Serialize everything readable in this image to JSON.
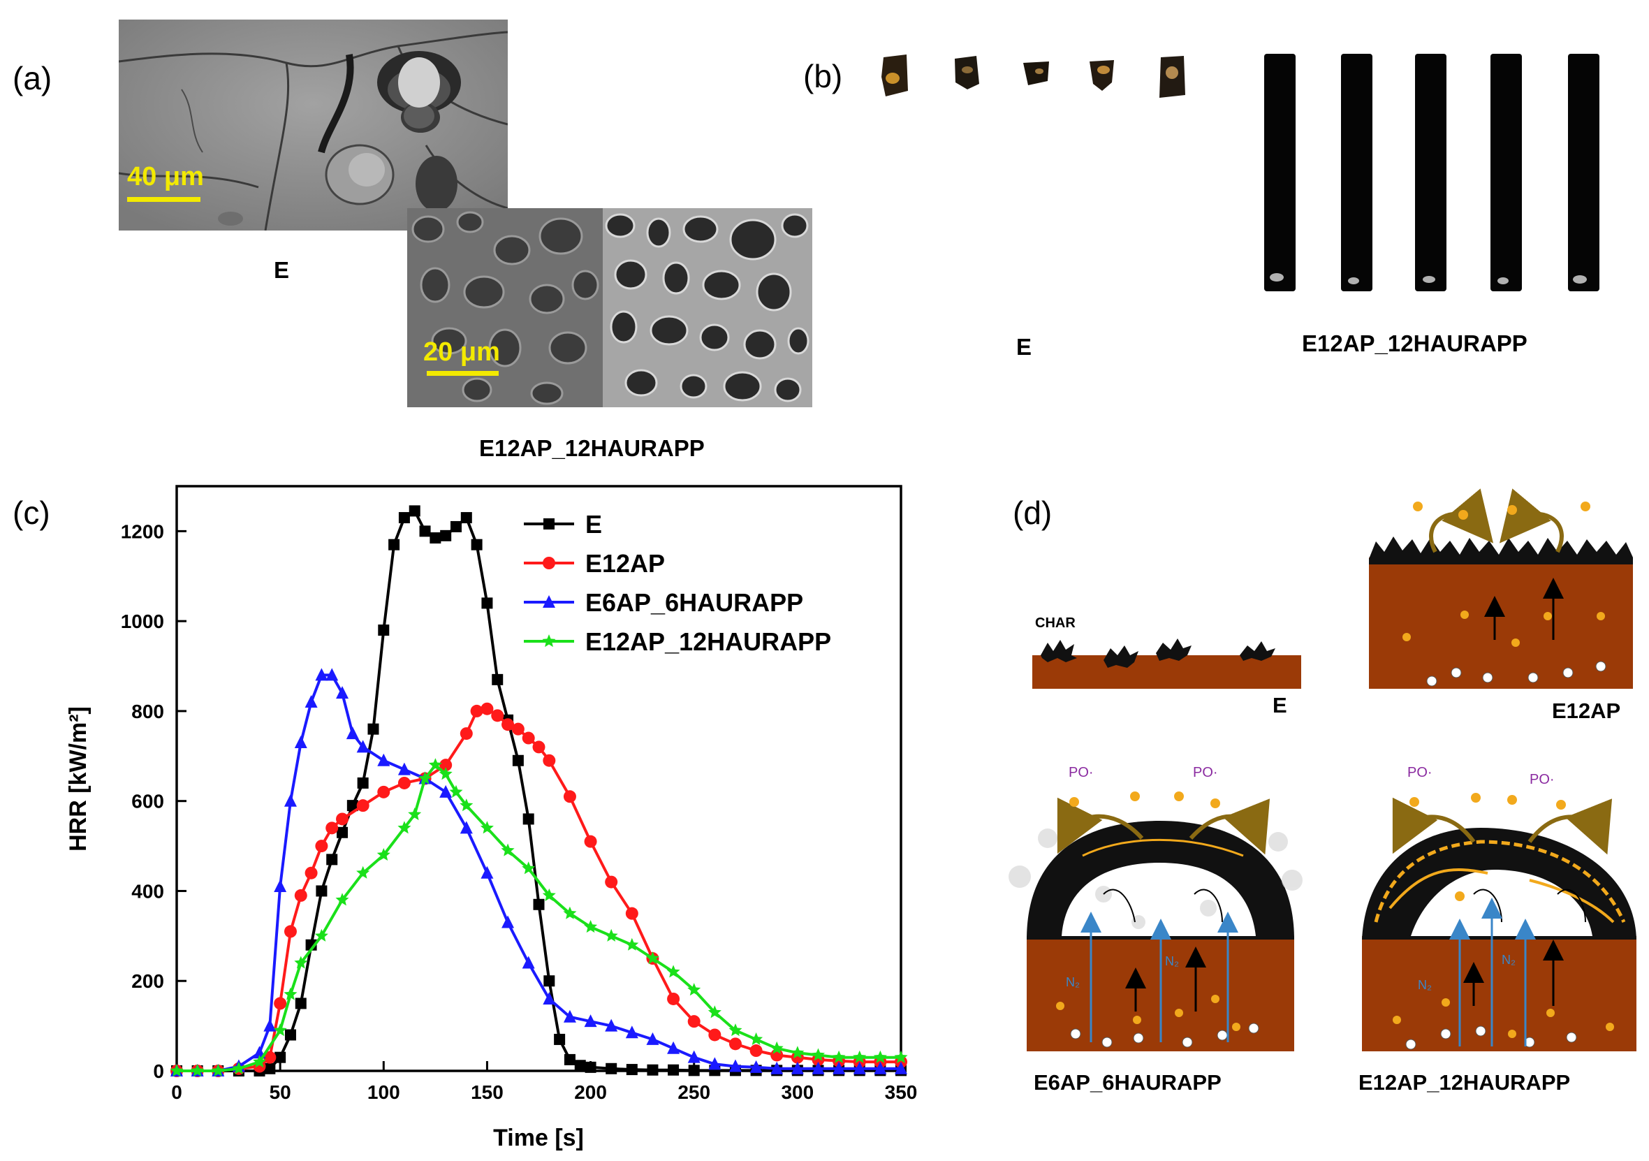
{
  "panels": {
    "a": {
      "label": "(a)",
      "scale_top": "40 μm",
      "scale_bottom": "20 μm",
      "caption_top": "E",
      "caption_bottom": "E12AP_12HAURAPP"
    },
    "b": {
      "label": "(b)",
      "caption_left": "E",
      "caption_right": "E12AP_12HAURAPP"
    },
    "c": {
      "label": "(c)"
    },
    "d": {
      "label": "(d)",
      "char_label": "CHAR",
      "po_label": "PO·",
      "n2_label": "N₂",
      "captions": [
        "E",
        "E12AP",
        "E6AP_6HAURAPP",
        "E12AP_12HAURAPP"
      ]
    }
  },
  "chart_data": {
    "type": "line",
    "xlabel": "Time [s]",
    "ylabel": "HRR [kW/m²]",
    "xlim": [
      0,
      350
    ],
    "ylim": [
      0,
      1300
    ],
    "xticks": [
      0,
      50,
      100,
      150,
      200,
      250,
      300,
      350
    ],
    "yticks": [
      0,
      200,
      400,
      600,
      800,
      1000,
      1200
    ],
    "legend_position": "top-right",
    "grid": false,
    "series": [
      {
        "name": "E",
        "color": "#000000",
        "marker": "square",
        "x": [
          0,
          10,
          20,
          30,
          40,
          45,
          50,
          55,
          60,
          65,
          70,
          75,
          80,
          85,
          90,
          95,
          100,
          105,
          110,
          115,
          120,
          125,
          130,
          135,
          140,
          145,
          150,
          155,
          160,
          165,
          170,
          175,
          180,
          185,
          190,
          195,
          200,
          210,
          220,
          230,
          240,
          250,
          260,
          270,
          280,
          290,
          300,
          310,
          320,
          330,
          340,
          350
        ],
        "y": [
          0,
          0,
          0,
          0,
          0,
          5,
          30,
          80,
          150,
          280,
          400,
          470,
          530,
          590,
          640,
          760,
          980,
          1170,
          1230,
          1245,
          1200,
          1185,
          1190,
          1210,
          1230,
          1170,
          1040,
          870,
          780,
          690,
          560,
          370,
          200,
          70,
          25,
          12,
          8,
          5,
          3,
          2,
          2,
          1,
          1,
          1,
          1,
          1,
          1,
          1,
          1,
          1,
          1,
          1
        ]
      },
      {
        "name": "E12AP",
        "color": "#ff1a1a",
        "marker": "circle",
        "x": [
          0,
          10,
          20,
          30,
          40,
          45,
          50,
          55,
          60,
          65,
          70,
          75,
          80,
          90,
          100,
          110,
          120,
          130,
          140,
          145,
          150,
          155,
          160,
          165,
          170,
          175,
          180,
          190,
          200,
          210,
          220,
          230,
          240,
          250,
          260,
          270,
          280,
          290,
          300,
          310,
          320,
          330,
          340,
          350
        ],
        "y": [
          0,
          0,
          0,
          5,
          10,
          30,
          150,
          310,
          390,
          440,
          500,
          540,
          560,
          590,
          620,
          640,
          650,
          680,
          750,
          800,
          805,
          790,
          770,
          760,
          740,
          720,
          690,
          610,
          510,
          420,
          350,
          250,
          160,
          110,
          80,
          60,
          45,
          35,
          30,
          25,
          22,
          20,
          20,
          20
        ]
      },
      {
        "name": "E6AP_6HAURAPP",
        "color": "#1a1aff",
        "marker": "triangle",
        "x": [
          0,
          10,
          20,
          30,
          40,
          45,
          50,
          55,
          60,
          65,
          70,
          75,
          80,
          85,
          90,
          100,
          110,
          120,
          130,
          140,
          150,
          160,
          170,
          180,
          190,
          200,
          210,
          220,
          230,
          240,
          250,
          260,
          270,
          280,
          290,
          300,
          310,
          320,
          330,
          340,
          350
        ],
        "y": [
          0,
          0,
          0,
          10,
          40,
          100,
          410,
          600,
          730,
          820,
          880,
          880,
          840,
          750,
          720,
          690,
          670,
          650,
          620,
          540,
          440,
          330,
          240,
          160,
          120,
          110,
          100,
          85,
          70,
          50,
          30,
          15,
          10,
          8,
          5,
          5,
          5,
          5,
          5,
          5,
          5
        ]
      },
      {
        "name": "E12AP_12HAURAPP",
        "color": "#1ae01a",
        "marker": "star",
        "x": [
          0,
          10,
          20,
          30,
          40,
          50,
          55,
          60,
          70,
          80,
          90,
          100,
          110,
          115,
          120,
          125,
          130,
          135,
          140,
          150,
          160,
          170,
          180,
          190,
          200,
          210,
          220,
          230,
          240,
          250,
          260,
          270,
          280,
          290,
          300,
          310,
          320,
          330,
          340,
          350
        ],
        "y": [
          0,
          0,
          0,
          5,
          20,
          90,
          170,
          240,
          300,
          380,
          440,
          480,
          540,
          570,
          650,
          680,
          660,
          620,
          590,
          540,
          490,
          450,
          390,
          350,
          320,
          300,
          280,
          250,
          220,
          180,
          130,
          90,
          70,
          50,
          40,
          35,
          30,
          30,
          30,
          30
        ]
      }
    ]
  }
}
